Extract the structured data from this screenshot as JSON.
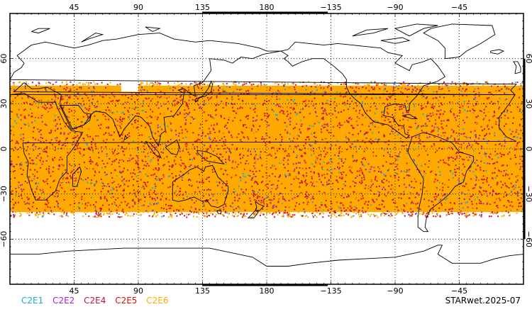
{
  "map": {
    "projection": "cylindrical",
    "center_longitude": 180,
    "latitude_range": [
      -90,
      90
    ],
    "longitude_ticks": [
      "45",
      "90",
      "135",
      "180",
      "−135",
      "−90",
      "−45"
    ],
    "latitude_ticks_left": [
      "60",
      "30",
      "0",
      "−30",
      "−60"
    ],
    "latitude_ticks_right": [
      "60",
      "30",
      "0",
      "−30",
      "−60"
    ],
    "coverage_band_latitude": [
      -45,
      45
    ],
    "coverage_gap_latitude": [
      38,
      45
    ],
    "coverage_gap_longitude": [
      78,
      90
    ],
    "colors": {
      "C2E1": "#22aacc",
      "C2E2": "#aa22cc",
      "C2E4": "#b5173a",
      "C2E5": "#dd1111",
      "C2E6": "#ffaa00",
      "coastline": "#000000",
      "grid": "#000000"
    }
  },
  "legend": [
    {
      "label": "C2E1",
      "color": "#22aacc"
    },
    {
      "label": "C2E2",
      "color": "#aa22cc"
    },
    {
      "label": "C2E4",
      "color": "#b5173a"
    },
    {
      "label": "C2E5",
      "color": "#dd1111"
    },
    {
      "label": "C2E6",
      "color": "#ffaa00"
    }
  ],
  "credit": "STARwet.2025-07"
}
